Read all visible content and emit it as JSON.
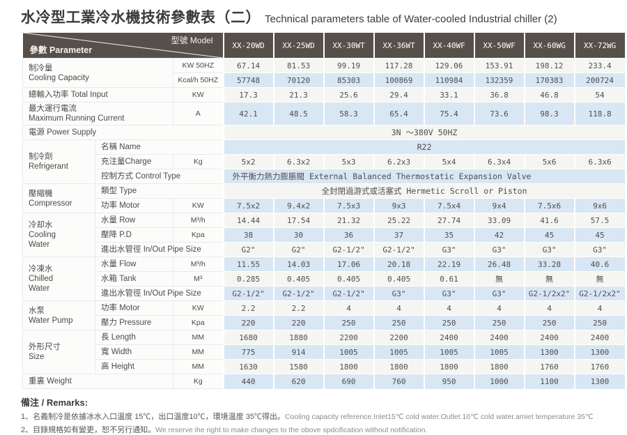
{
  "title": {
    "zh": "水冷型工業冷水機技術參數表（二）",
    "en": "Technical parameters table of Water-cooled Industrial chiller (2)"
  },
  "colors": {
    "header_bg": "#57504a",
    "band_blue": "#d9e6f4",
    "band_light": "#f5f6f2"
  },
  "table": {
    "corner": {
      "param": "參數 Parameter",
      "model": "型號 Model"
    },
    "models": [
      "XX-20WD",
      "XX-25WD",
      "XX-30WT",
      "XX-36WT",
      "XX-40WF",
      "XX-50WF",
      "XX-60WG",
      "XX-72WG"
    ],
    "rows": [
      [
        {
          "t": "制冷量\nCooling Capacity",
          "c": "g",
          "cs": 2,
          "rs": 2
        },
        {
          "t": "KW 50HZ",
          "c": "u"
        },
        "67.14",
        "81.53",
        "99.19",
        "117.28",
        "129.06",
        "153.91",
        "198.12",
        "233.4"
      ],
      [
        {
          "t": "Kcal/h 50HZ",
          "c": "u"
        },
        "57748",
        "70120",
        "85303",
        "100869",
        "110984",
        "132359",
        "170383",
        "200724"
      ],
      [
        {
          "t": "總輸入功率 Total Input",
          "c": "g",
          "cs": 2
        },
        {
          "t": "KW",
          "c": "u"
        },
        "17.3",
        "21.3",
        "25.6",
        "29.4",
        "33.1",
        "36.8",
        "46.8",
        "54"
      ],
      [
        {
          "t": "最大運行電流\nMaximum Running Current",
          "c": "g",
          "cs": 2
        },
        {
          "t": "A",
          "c": "u"
        },
        "42.1",
        "48.5",
        "58.3",
        "65.4",
        "75.4",
        "73.6",
        "98.3",
        "118.8"
      ],
      [
        {
          "t": "電源 Power Supply",
          "c": "g",
          "cs": 3
        },
        {
          "t": "3N ～380V  50HZ",
          "c": "sp",
          "cs": 8
        }
      ],
      [
        {
          "t": "制冷劑\nRefrigerant",
          "c": "g",
          "rs": 3
        },
        {
          "t": "名稱 Name",
          "c": "l",
          "cs": 2
        },
        {
          "t": "R22",
          "c": "sp",
          "cs": 8
        }
      ],
      [
        {
          "t": "充注量Charge",
          "c": "l"
        },
        {
          "t": "Kg",
          "c": "u"
        },
        "5x2",
        "6.3x2",
        "5x3",
        "6.2x3",
        "5x4",
        "6.3x4",
        "5x6",
        "6.3x6"
      ],
      [
        {
          "t": "控制方式 Control Type",
          "c": "l",
          "cs": 2
        },
        {
          "t": "外平衡力熱力膨脹閥 External Balanced Thermostatic Expansion Valve",
          "c": "spl",
          "cs": 8
        }
      ],
      [
        {
          "t": "壓縮機\nCompressor",
          "c": "g",
          "rs": 2
        },
        {
          "t": "類型 Type",
          "c": "l",
          "cs": 2
        },
        {
          "t": "全封閉過游式或活塞式 Hermetic Scroll or Piston",
          "c": "sp",
          "cs": 8
        }
      ],
      [
        {
          "t": "功率 Motor",
          "c": "l"
        },
        {
          "t": "KW",
          "c": "u"
        },
        "7.5x2",
        "9.4x2",
        "7.5x3",
        "9x3",
        "7.5x4",
        "9x4",
        "7.5x6",
        "9x6"
      ],
      [
        {
          "t": "冷却水\nCooling\nWater",
          "c": "g",
          "rs": 3
        },
        {
          "t": "水量 Row",
          "c": "l"
        },
        {
          "t": "M³/h",
          "c": "u"
        },
        "14.44",
        "17.54",
        "21.32",
        "25.22",
        "27.74",
        "33.09",
        "41.6",
        "57.5"
      ],
      [
        {
          "t": "壓降 P.D",
          "c": "l"
        },
        {
          "t": "Kpa",
          "c": "u"
        },
        "38",
        "30",
        "36",
        "37",
        "35",
        "42",
        "45",
        "45"
      ],
      [
        {
          "t": "進出水管徑 In/Out Pipe Size",
          "c": "l",
          "cs": 2
        },
        "G2\"",
        "G2\"",
        "G2-1/2\"",
        "G2-1/2\"",
        "G3\"",
        "G3\"",
        "G3\"",
        "G3\""
      ],
      [
        {
          "t": "冷凍水\nChilled\nWater",
          "c": "g",
          "rs": 3
        },
        {
          "t": "水量 Flow",
          "c": "l"
        },
        {
          "t": "M³/h",
          "c": "u"
        },
        "11.55",
        "14.03",
        "17.06",
        "20.18",
        "22.19",
        "26.48",
        "33.28",
        "40.6"
      ],
      [
        {
          "t": "水箱 Tank",
          "c": "l"
        },
        {
          "t": "M³",
          "c": "u"
        },
        "0.285",
        "0.405",
        "0.405",
        "0.405",
        "0.61",
        "無",
        "無",
        "無"
      ],
      [
        {
          "t": "進出水管徑 In/Out Pipe Size",
          "c": "l",
          "cs": 2
        },
        "G2-1/2\"",
        "G2-1/2\"",
        "G2-1/2\"",
        "G3\"",
        "G3\"",
        "G3\"",
        "G2-1/2x2\"",
        "G2-1/2x2\""
      ],
      [
        {
          "t": "水泵\nWater Pump",
          "c": "g",
          "rs": 2
        },
        {
          "t": "功率 Motor",
          "c": "l"
        },
        {
          "t": "KW",
          "c": "u"
        },
        "2.2",
        "2.2",
        "4",
        "4",
        "4",
        "4",
        "4",
        "4"
      ],
      [
        {
          "t": "壓力 Pressure",
          "c": "l"
        },
        {
          "t": "Kpa",
          "c": "u"
        },
        "220",
        "220",
        "250",
        "250",
        "250",
        "250",
        "250",
        "250"
      ],
      [
        {
          "t": "外形尺寸\nSize",
          "c": "g",
          "rs": 3
        },
        {
          "t": "長 Length",
          "c": "l"
        },
        {
          "t": "MM",
          "c": "u"
        },
        "1680",
        "1880",
        "2200",
        "2200",
        "2400",
        "2400",
        "2400",
        "2400"
      ],
      [
        {
          "t": "寬 Width",
          "c": "l"
        },
        {
          "t": "MM",
          "c": "u"
        },
        "775",
        "914",
        "1005",
        "1005",
        "1005",
        "1005",
        "1300",
        "1300"
      ],
      [
        {
          "t": "高 Height",
          "c": "l"
        },
        {
          "t": "MM",
          "c": "u"
        },
        "1630",
        "1580",
        "1800",
        "1800",
        "1800",
        "1800",
        "1760",
        "1760"
      ],
      [
        {
          "t": "重裏 Weight",
          "c": "g",
          "cs": 2
        },
        {
          "t": "Kg",
          "c": "u"
        },
        "440",
        "620",
        "690",
        "760",
        "950",
        "1000",
        "1100",
        "1300"
      ]
    ]
  },
  "remarks": {
    "title": "備注 / Remarks:",
    "lines": [
      {
        "zh": "1、名義制冷是依據冰水入口温度 15℃，出口温度10℃，環境温度 35℃得出。",
        "en": "Cooling capacity reference.Inlet15℃ cold water.Outlet 10℃ cold water.amiet temperature 35℃"
      },
      {
        "zh": "2、目錄規格如有變更，恕不另行通知。",
        "en": "We reserve ihe right to make changes to the obove spdcification without notification."
      }
    ]
  }
}
